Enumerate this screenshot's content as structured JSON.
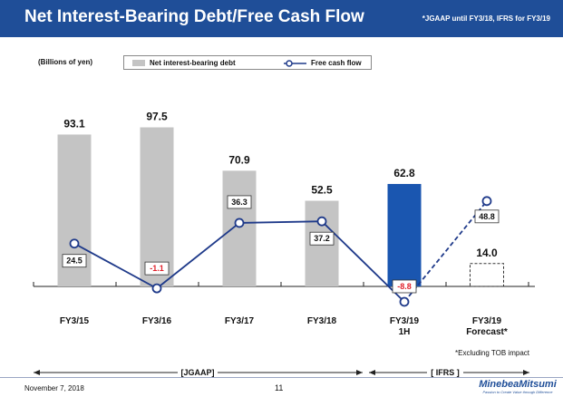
{
  "header": {
    "title": "Net Interest-Bearing Debt/Free Cash Flow",
    "note": "*JGAAP until FY3/18, IFRS for FY3/19"
  },
  "units_label": "(Billions of yen)",
  "legend": {
    "bar_label": "Net interest-bearing debt",
    "line_label": "Free cash flow"
  },
  "colors": {
    "header": "#1f4e98",
    "bar_gray": "#c4c4c4",
    "bar_blue": "#1a56b0",
    "line": "#1f3a8a",
    "negative_text": "#e0202a"
  },
  "chart_data": {
    "type": "bar+line",
    "categories": [
      "FY3/15",
      "FY3/16",
      "FY3/17",
      "FY3/18",
      "FY3/19 1H",
      "FY3/19 Forecast*"
    ],
    "category_lines": [
      [
        "FY3/15"
      ],
      [
        "FY3/16"
      ],
      [
        "FY3/17"
      ],
      [
        "FY3/18"
      ],
      [
        "FY3/19",
        "1H"
      ],
      [
        "FY3/19",
        "Forecast*"
      ]
    ],
    "series": [
      {
        "name": "Net interest-bearing debt",
        "kind": "bar",
        "values": [
          93.1,
          97.5,
          70.9,
          52.5,
          62.8,
          14.0
        ],
        "labels": [
          "93.1",
          "97.5",
          "70.9",
          "52.5",
          "62.8",
          "14.0"
        ]
      },
      {
        "name": "Free cash flow",
        "kind": "line",
        "values": [
          24.5,
          -1.1,
          36.3,
          37.2,
          -8.8,
          48.8
        ],
        "labels": [
          "24.5",
          "-1.1",
          "36.3",
          "37.2",
          "-8.8",
          "48.8"
        ]
      }
    ],
    "ylabel": "Billions of yen",
    "ylim": [
      -10,
      110
    ],
    "grid": false,
    "legend_position": "top"
  },
  "eras": {
    "jgaap": "[JGAAP]",
    "ifrs": "[ IFRS ]"
  },
  "footnote": "*Excluding TOB impact",
  "footer": {
    "date": "November 7, 2018",
    "page": "11",
    "brand": "MinebeaMitsumi",
    "tagline": "Passion to Create Value through Difference"
  }
}
